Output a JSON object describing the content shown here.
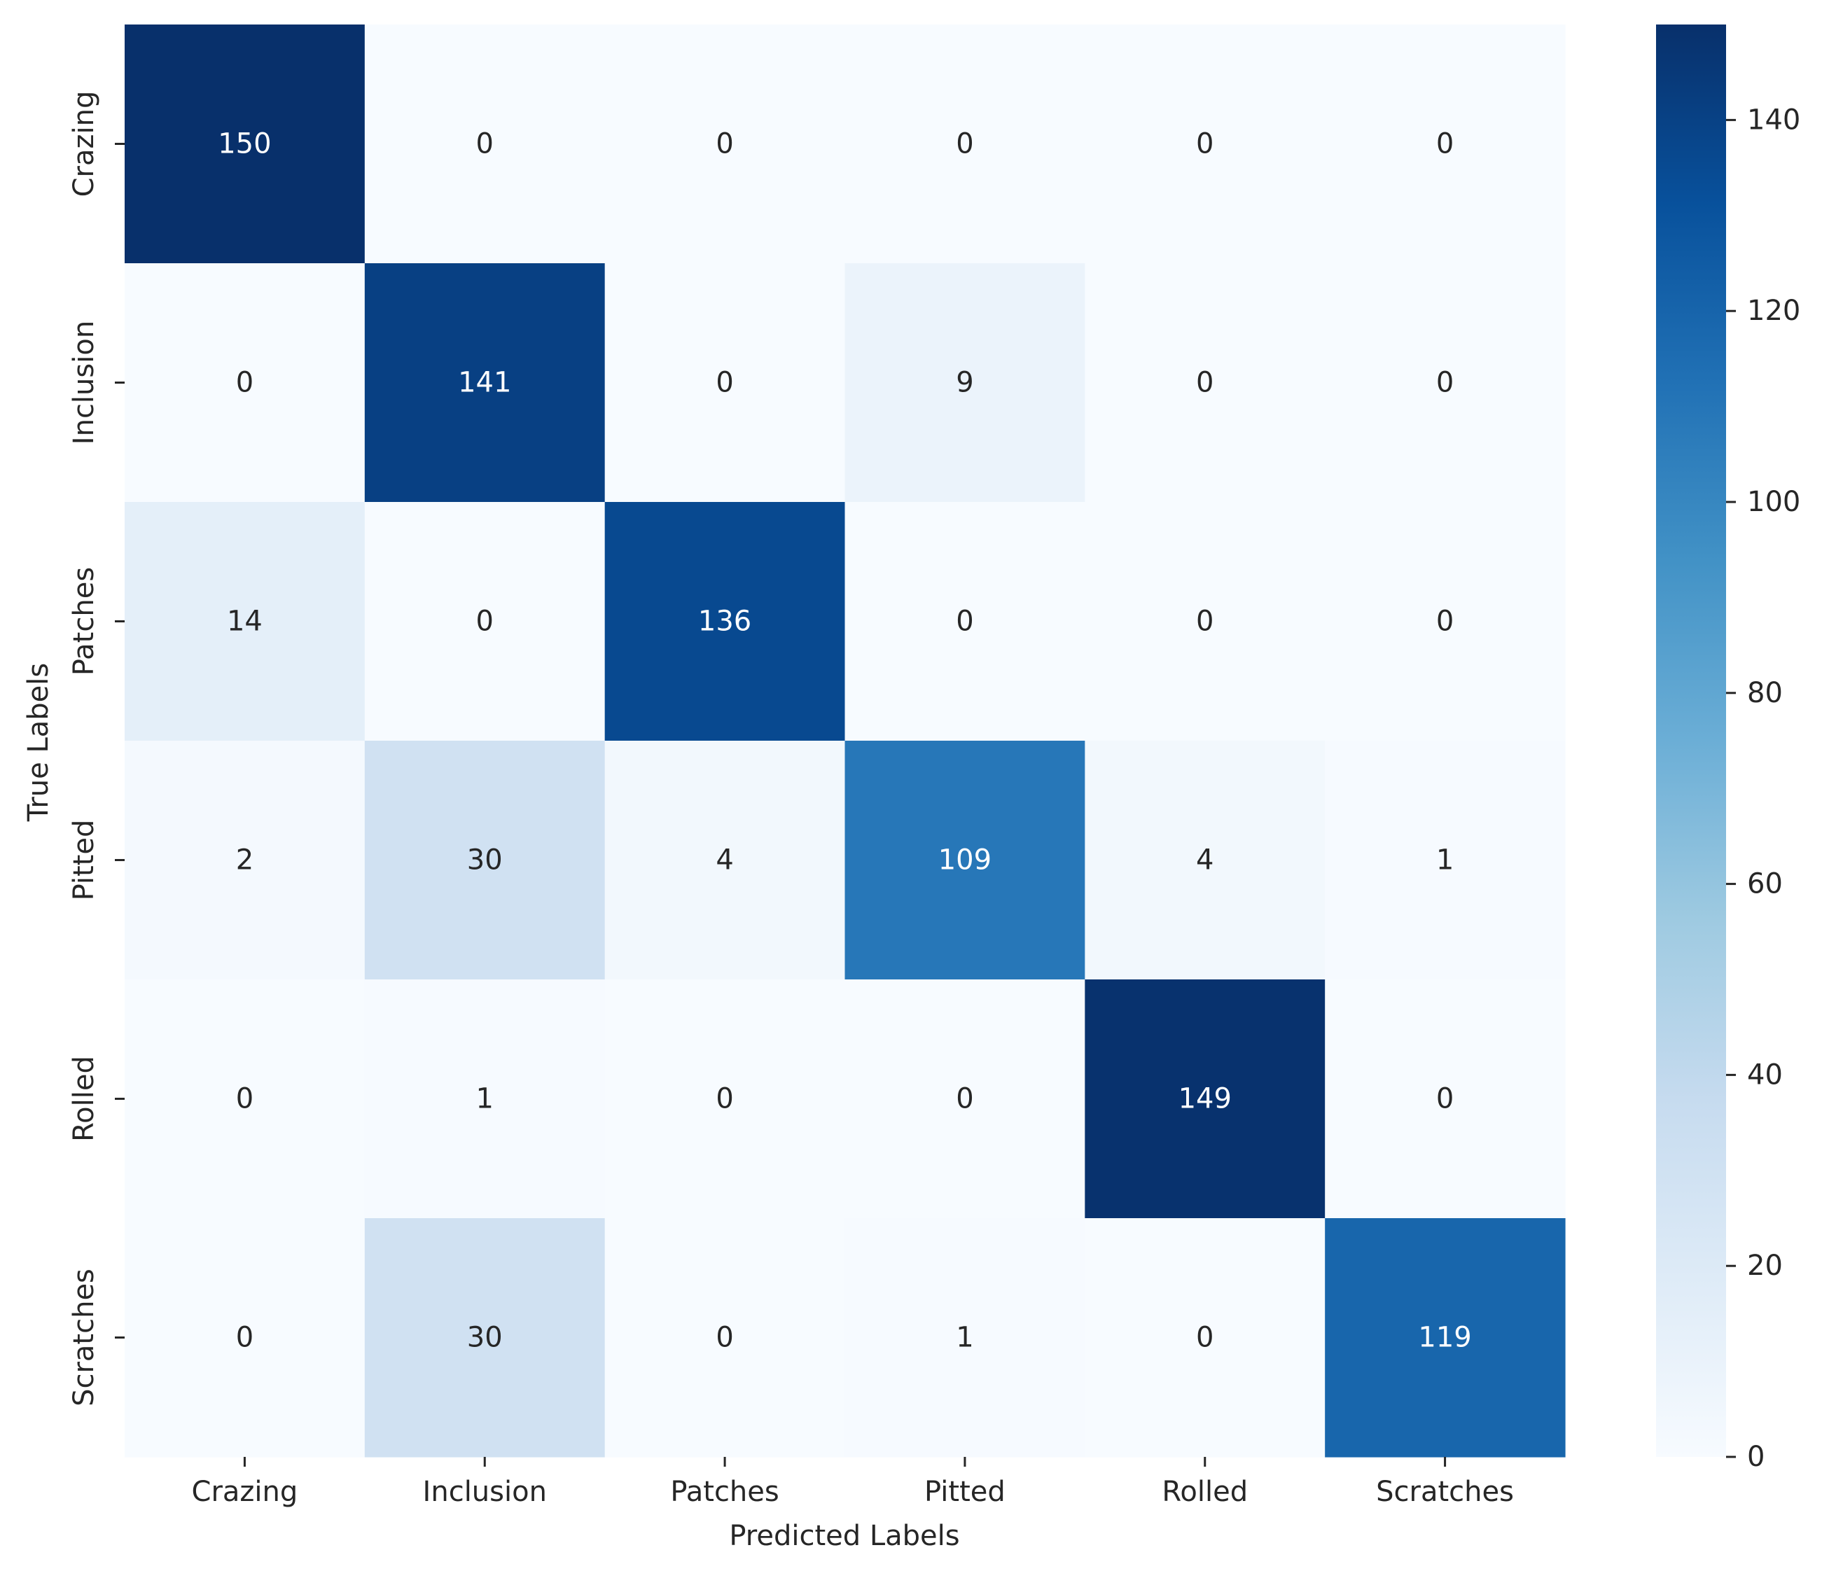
{
  "chart_data": {
    "type": "heatmap",
    "title": "",
    "xlabel": "Predicted Labels",
    "ylabel": "True Labels",
    "x_categories": [
      "Crazing",
      "Inclusion",
      "Patches",
      "Pitted",
      "Rolled",
      "Scratches"
    ],
    "y_categories": [
      "Crazing",
      "Inclusion",
      "Patches",
      "Pitted",
      "Rolled",
      "Scratches"
    ],
    "matrix": [
      [
        150,
        0,
        0,
        0,
        0,
        0
      ],
      [
        0,
        141,
        0,
        9,
        0,
        0
      ],
      [
        14,
        0,
        136,
        0,
        0,
        0
      ],
      [
        2,
        30,
        4,
        109,
        4,
        1
      ],
      [
        0,
        1,
        0,
        0,
        149,
        0
      ],
      [
        0,
        30,
        0,
        1,
        0,
        119
      ]
    ],
    "colormap": "Blues",
    "colorbar": {
      "range": [
        0,
        150
      ],
      "ticks": [
        0,
        20,
        40,
        60,
        80,
        100,
        120,
        140
      ]
    }
  }
}
